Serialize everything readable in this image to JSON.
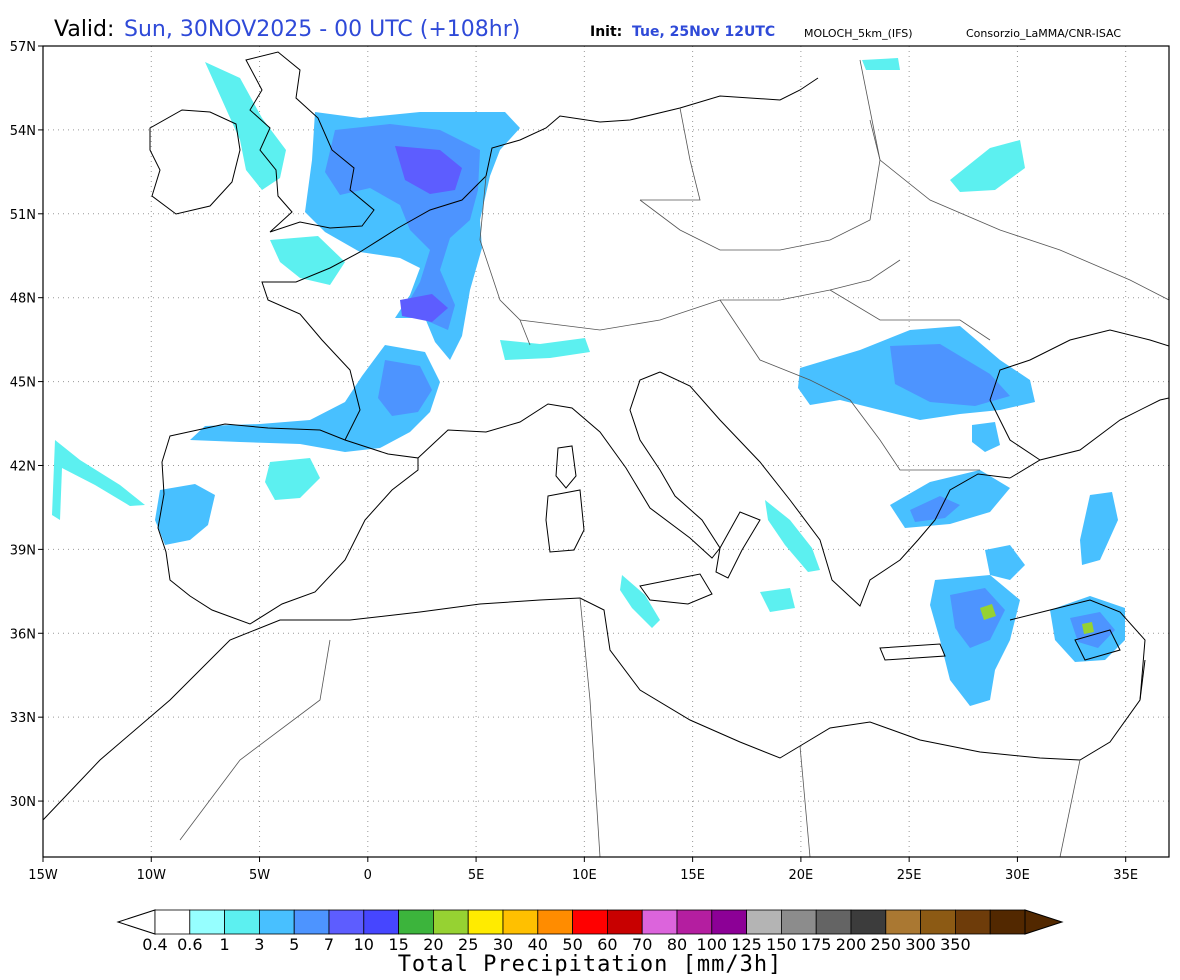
{
  "header": {
    "valid_label": "Valid:",
    "valid_value": "Sun, 30NOV2025 - 00 UTC (+108hr)",
    "init_label": "Init:",
    "init_value": "Tue, 25Nov 12UTC",
    "model": "MOLOCH_5km_(IFS)",
    "credit": "Consorzio_LaMMA/CNR-ISAC"
  },
  "map": {
    "lat_labels": [
      "57N",
      "54N",
      "51N",
      "48N",
      "45N",
      "42N",
      "39N",
      "36N",
      "33N",
      "30N"
    ],
    "lon_labels": [
      "15W",
      "10W",
      "5W",
      "0",
      "5E",
      "10E",
      "15E",
      "20E",
      "25E",
      "30E",
      "35E"
    ],
    "lat_range": [
      28,
      57
    ],
    "lon_range": [
      -15,
      37
    ]
  },
  "colorbar": {
    "title": "Total Precipitation [mm/3h]",
    "ticks": [
      "0.4",
      "0.6",
      "1",
      "3",
      "5",
      "7",
      "10",
      "15",
      "20",
      "25",
      "30",
      "40",
      "50",
      "60",
      "70",
      "80",
      "100",
      "125",
      "150",
      "175",
      "200",
      "250",
      "300",
      "350"
    ],
    "colors": [
      "#ffffff",
      "#96ffff",
      "#5cf0f0",
      "#48c0ff",
      "#4d94ff",
      "#5d5dff",
      "#4646ff",
      "#3cb43c",
      "#96d232",
      "#ffeb00",
      "#ffc000",
      "#ff8c00",
      "#ff0000",
      "#c80000",
      "#dc64dc",
      "#b41ea0",
      "#8c0096",
      "#b4b4b4",
      "#8c8c8c",
      "#646464",
      "#3c3c3c",
      "#aa7832",
      "#8c5a14",
      "#6e3c0a",
      "#522800"
    ]
  }
}
